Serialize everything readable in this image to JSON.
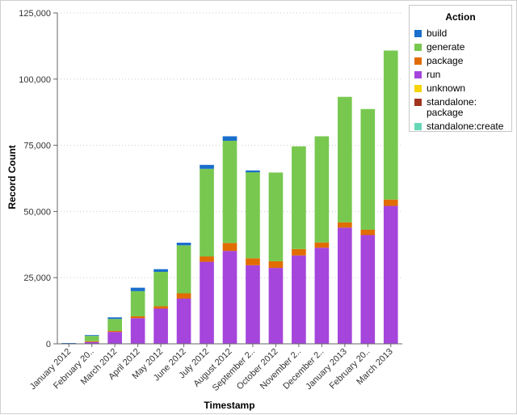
{
  "chart_data": {
    "type": "bar",
    "stacked": true,
    "xlabel": "Timestamp",
    "ylabel": "Record Count",
    "ylim": [
      0,
      125000
    ],
    "yticks": [
      0,
      25000,
      50000,
      75000,
      100000,
      125000
    ],
    "ytick_labels": [
      "0",
      "25,000",
      "50,000",
      "75,000",
      "100,000",
      "125,000"
    ],
    "categories": [
      "January 2012",
      "February 20..",
      "March 2012",
      "April 2012",
      "May 2012",
      "June 2012",
      "July 2012",
      "August 2012",
      "September 2..",
      "October 2012",
      "November 2..",
      "December 2..",
      "January 2013",
      "February 20..",
      "March 2013"
    ],
    "legend_title": "Action",
    "legend_position": "top-right",
    "series": [
      {
        "name": "run",
        "color": "#a545dc",
        "values": [
          100,
          700,
          4500,
          9700,
          13300,
          17100,
          31000,
          35100,
          29700,
          28700,
          33400,
          36300,
          43900,
          41100,
          52100
        ]
      },
      {
        "name": "package",
        "color": "#e16c00",
        "values": [
          50,
          300,
          400,
          700,
          900,
          2000,
          2000,
          3000,
          2600,
          2500,
          2400,
          2000,
          2000,
          2000,
          2400
        ]
      },
      {
        "name": "generate",
        "color": "#78c850",
        "values": [
          50,
          2000,
          4500,
          9500,
          13000,
          18100,
          33100,
          38600,
          32500,
          33500,
          38800,
          40100,
          47400,
          45600,
          56300
        ]
      },
      {
        "name": "build",
        "color": "#1a6ecc",
        "values": [
          100,
          300,
          600,
          1300,
          1000,
          1000,
          1500,
          1700,
          700,
          0,
          0,
          0,
          0,
          0,
          0
        ]
      },
      {
        "name": "unknown",
        "color": "#f5d400",
        "values": [
          0,
          0,
          0,
          0,
          0,
          0,
          0,
          0,
          0,
          0,
          0,
          0,
          0,
          0,
          0
        ]
      },
      {
        "name": "standalone:\npackage",
        "color": "#a0341c",
        "values": [
          0,
          0,
          0,
          0,
          0,
          0,
          0,
          0,
          0,
          0,
          0,
          0,
          0,
          0,
          0
        ]
      },
      {
        "name": "standalone:create",
        "color": "#66d8b8",
        "values": [
          0,
          0,
          0,
          0,
          0,
          0,
          0,
          0,
          0,
          0,
          0,
          0,
          0,
          0,
          0
        ]
      }
    ],
    "legend_order": [
      "build",
      "generate",
      "package",
      "run",
      "unknown",
      "standalone:\npackage",
      "standalone:create"
    ],
    "grid": true
  }
}
